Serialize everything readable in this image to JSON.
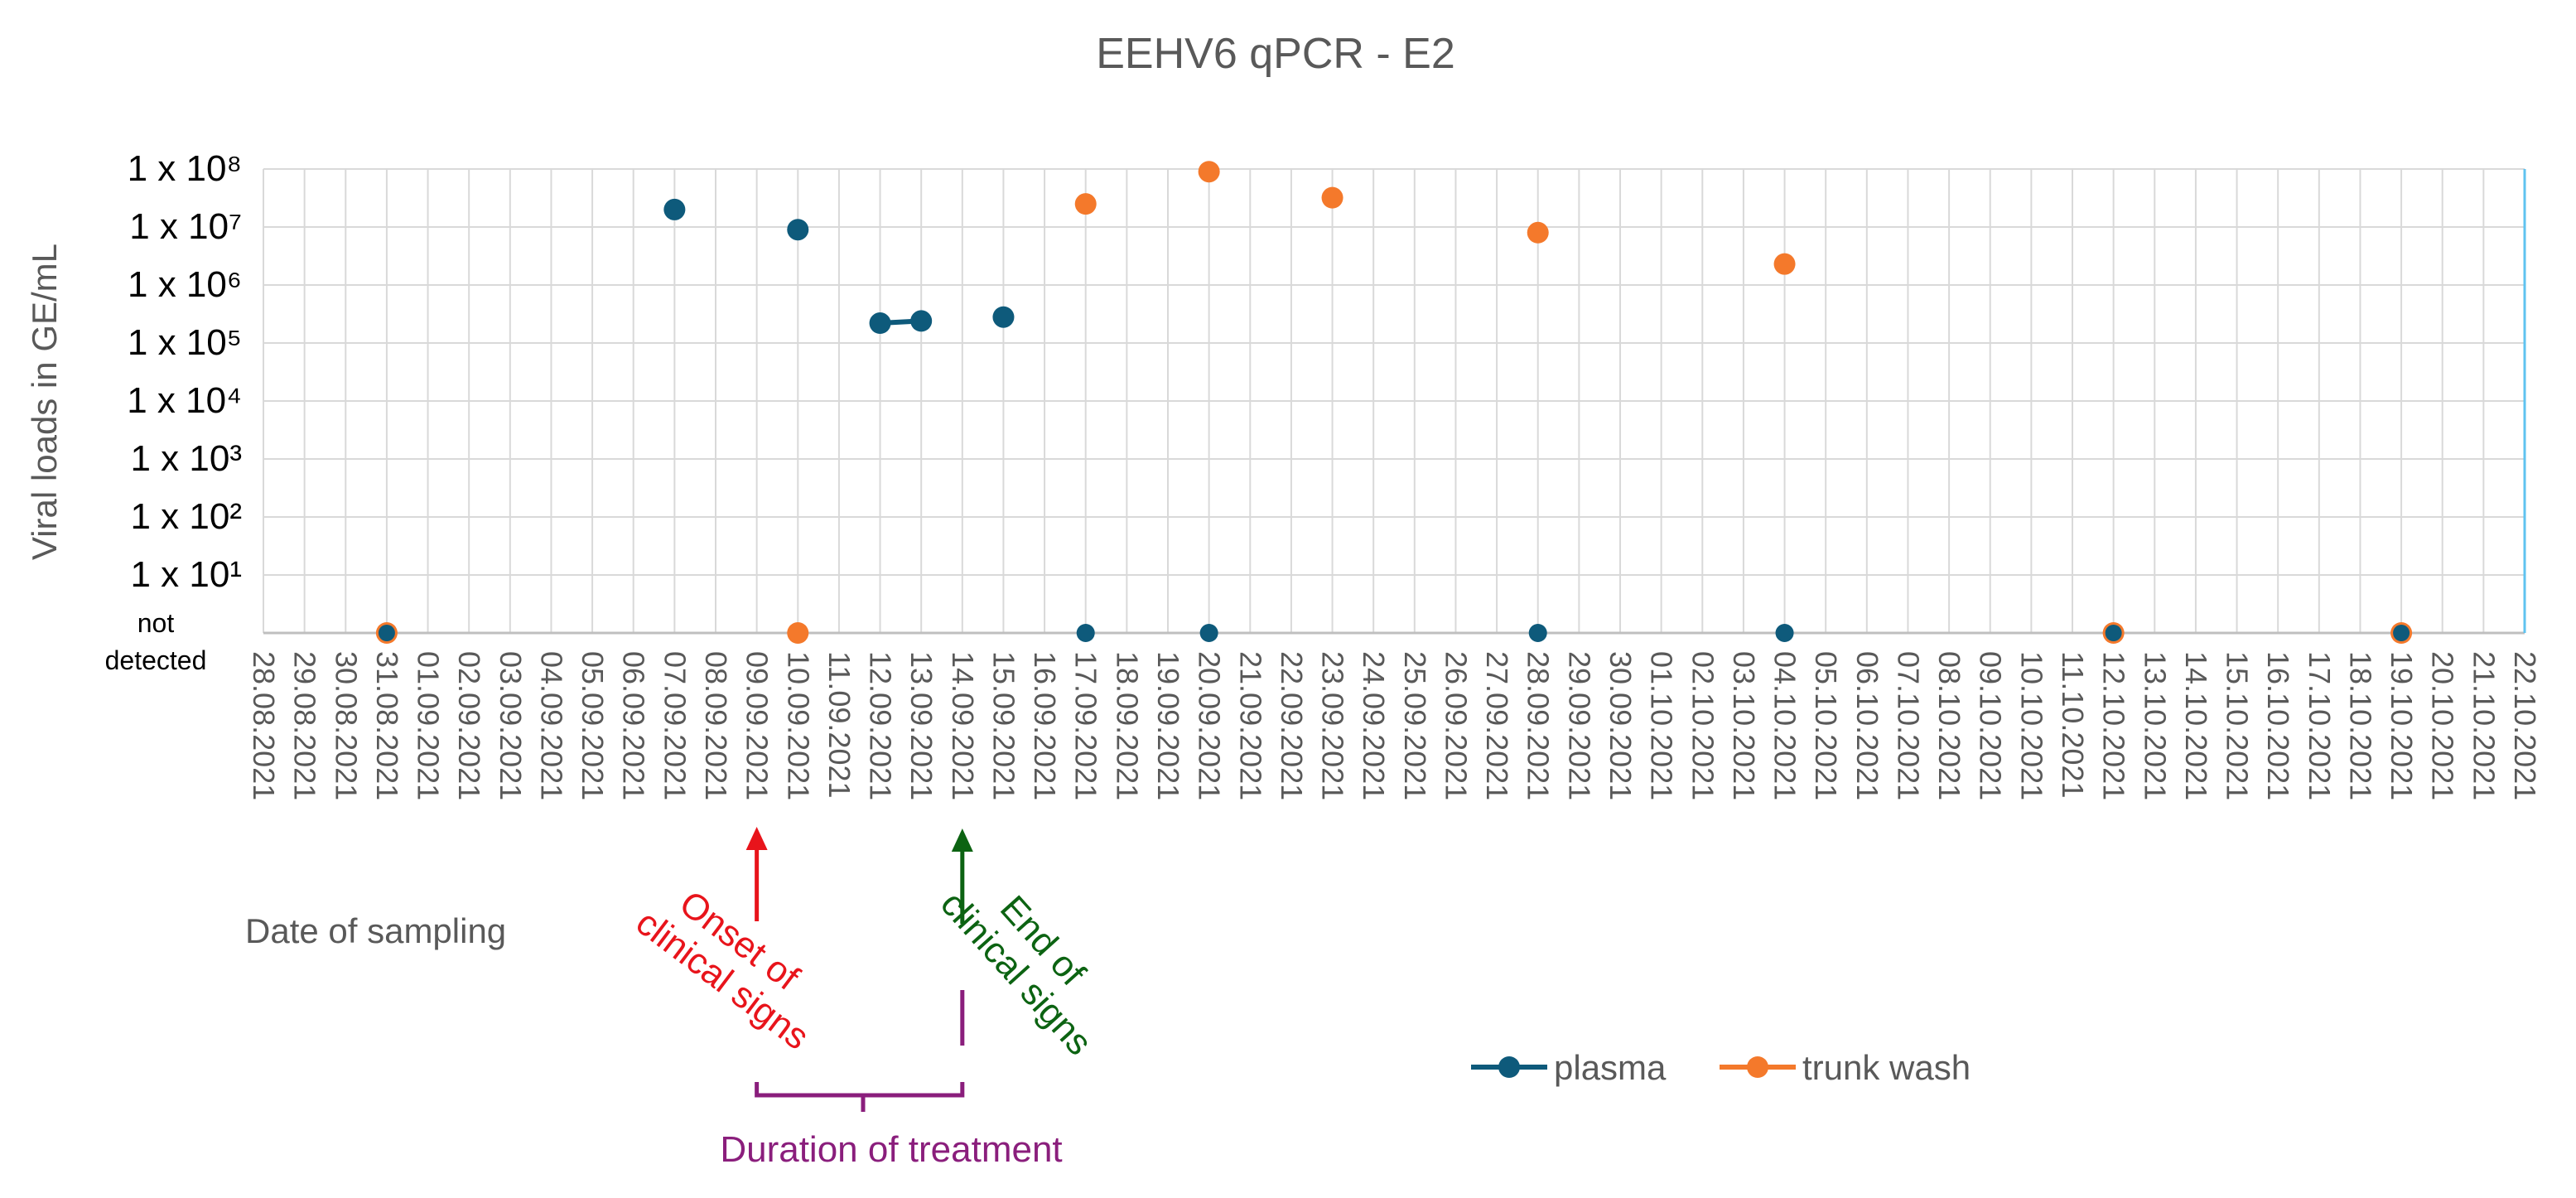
{
  "chart_data": {
    "type": "scatter",
    "title": "EEHV6 qPCR - E2",
    "ylabel": "Viral loads in GE/mL",
    "xlabel": "Date of sampling",
    "y_scale": "log10",
    "y_min_exponent": 1,
    "y_max_exponent": 8,
    "y_tick_prefix": "1 x 10",
    "y_not_detected_label": [
      "not",
      "detected"
    ],
    "x_start": "2021-08-28",
    "x_end": "2021-10-22",
    "x_tick_labels": [
      "28.08.2021",
      "29.08.2021",
      "30.08.2021",
      "31.08.2021",
      "01.09.2021",
      "02.09.2021",
      "03.09.2021",
      "04.09.2021",
      "05.09.2021",
      "06.09.2021",
      "07.09.2021",
      "08.09.2021",
      "09.09.2021",
      "10.09.2021",
      "11.09.2021",
      "12.09.2021",
      "13.09.2021",
      "14.09.2021",
      "15.09.2021",
      "16.09.2021",
      "17.09.2021",
      "18.09.2021",
      "19.09.2021",
      "20.09.2021",
      "21.09.2021",
      "22.09.2021",
      "23.09.2021",
      "24.09.2021",
      "25.09.2021",
      "26.09.2021",
      "27.09.2021",
      "28.09.2021",
      "29.09.2021",
      "30.09.2021",
      "01.10.2021",
      "02.10.2021",
      "03.10.2021",
      "04.10.2021",
      "05.10.2021",
      "06.10.2021",
      "07.10.2021",
      "08.10.2021",
      "09.10.2021",
      "10.10.2021",
      "11.10.2021",
      "12.10.2021",
      "13.10.2021",
      "14.10.2021",
      "15.10.2021",
      "16.10.2021",
      "17.10.2021",
      "18.10.2021",
      "19.10.2021",
      "20.10.2021",
      "21.10.2021",
      "22.10.2021"
    ],
    "series": [
      {
        "name": "plasma",
        "color": "#0e5a7b",
        "points": [
          {
            "x": "2021-08-31",
            "y": null
          },
          {
            "x": "2021-09-07",
            "y": 20000000
          },
          {
            "x": "2021-09-10",
            "y": 9000000
          },
          {
            "x": "2021-09-12",
            "y": 220000
          },
          {
            "x": "2021-09-13",
            "y": 240000
          },
          {
            "x": "2021-09-15",
            "y": 280000
          },
          {
            "x": "2021-09-17",
            "y": null
          },
          {
            "x": "2021-09-20",
            "y": null
          },
          {
            "x": "2021-09-28",
            "y": null
          },
          {
            "x": "2021-10-04",
            "y": null
          },
          {
            "x": "2021-10-12",
            "y": null
          },
          {
            "x": "2021-10-19",
            "y": null
          }
        ],
        "connected_segments": [
          [
            "2021-09-12",
            "2021-09-13"
          ]
        ]
      },
      {
        "name": "trunk wash",
        "color": "#f4792b",
        "points": [
          {
            "x": "2021-08-31",
            "y": null
          },
          {
            "x": "2021-09-10",
            "y": null
          },
          {
            "x": "2021-09-17",
            "y": 25000000
          },
          {
            "x": "2021-09-20",
            "y": 90000000
          },
          {
            "x": "2021-09-23",
            "y": 32000000
          },
          {
            "x": "2021-09-28",
            "y": 8000000
          },
          {
            "x": "2021-10-04",
            "y": 2300000
          },
          {
            "x": "2021-10-12",
            "y": null
          },
          {
            "x": "2021-10-19",
            "y": null
          }
        ]
      }
    ],
    "annotations": {
      "onset": {
        "date": "2021-09-09",
        "lines": [
          "Onset of",
          "clinical signs"
        ],
        "color": "#e8141b"
      },
      "end": {
        "date": "2021-09-14",
        "lines": [
          "End of",
          "clinical signs"
        ],
        "color": "#0c6312"
      },
      "treatment": {
        "start": "2021-09-09",
        "end": "2021-09-14",
        "label": "Duration of treatment",
        "color": "#8a1e7c"
      }
    },
    "legend": {
      "position": "bottom-right",
      "items": [
        "plasma",
        "trunk wash"
      ]
    }
  }
}
